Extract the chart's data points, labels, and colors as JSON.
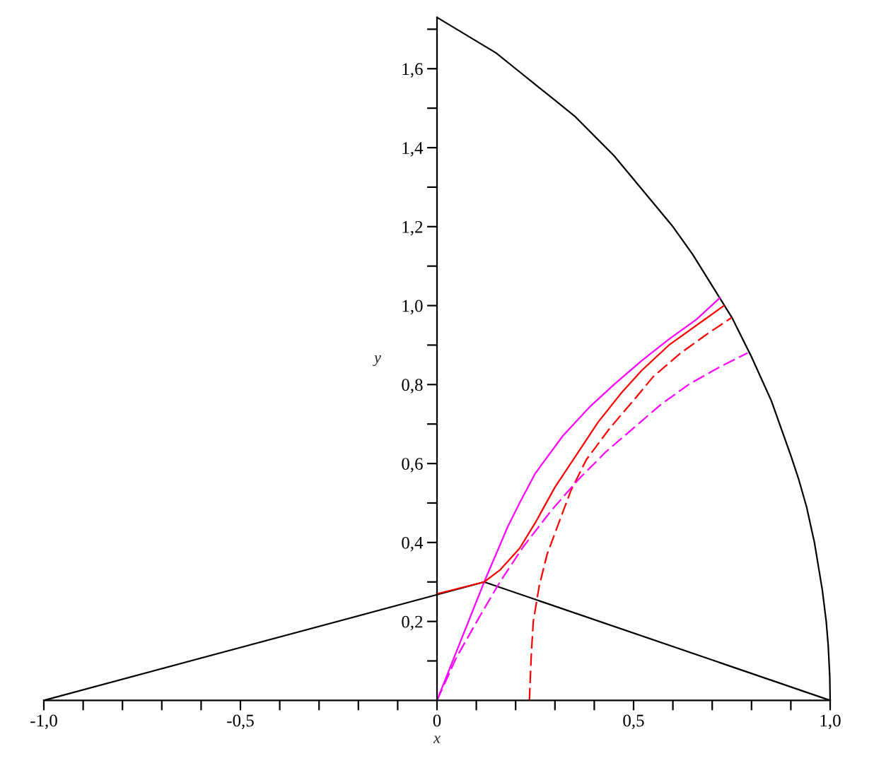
{
  "chart_data": {
    "type": "line",
    "xlabel": "x",
    "ylabel": "y",
    "xlim": [
      -1,
      1
    ],
    "ylim": [
      0,
      1.73
    ],
    "xticks": [
      {
        "value": -1,
        "label": "-1,0"
      },
      {
        "value": -0.9,
        "label": null
      },
      {
        "value": -0.8,
        "label": null
      },
      {
        "value": -0.7,
        "label": null
      },
      {
        "value": -0.6,
        "label": null
      },
      {
        "value": -0.5,
        "label": "-0,5"
      },
      {
        "value": -0.4,
        "label": null
      },
      {
        "value": -0.3,
        "label": null
      },
      {
        "value": -0.2,
        "label": null
      },
      {
        "value": -0.1,
        "label": null
      },
      0,
      {
        "value": 0.1,
        "label": null
      },
      {
        "value": 0.2,
        "label": null
      },
      {
        "value": 0.3,
        "label": null
      },
      {
        "value": 0.4,
        "label": null
      },
      {
        "value": 0.5,
        "label": "0,5"
      },
      {
        "value": 0.6,
        "label": null
      },
      {
        "value": 0.7,
        "label": null
      },
      {
        "value": 0.8,
        "label": null
      },
      {
        "value": 0.9,
        "label": null
      },
      {
        "value": 1,
        "label": "1,0"
      }
    ],
    "yticks": [
      {
        "value": 0.1,
        "label": null
      },
      {
        "value": 0.2,
        "label": "0,2"
      },
      {
        "value": 0.3,
        "label": null
      },
      {
        "value": 0.4,
        "label": "0,4"
      },
      {
        "value": 0.5,
        "label": null
      },
      {
        "value": 0.6,
        "label": "0,6"
      },
      {
        "value": 0.7,
        "label": null
      },
      {
        "value": 0.8,
        "label": "0,8"
      },
      {
        "value": 0.9,
        "label": null
      },
      {
        "value": 1.0,
        "label": "1,0"
      },
      {
        "value": 1.1,
        "label": null
      },
      {
        "value": 1.2,
        "label": "1,2"
      },
      {
        "value": 1.3,
        "label": null
      },
      {
        "value": 1.4,
        "label": "1,4"
      },
      {
        "value": 1.5,
        "label": null
      },
      {
        "value": 1.6,
        "label": "1,6"
      },
      {
        "value": 1.7,
        "label": null
      }
    ],
    "series": [
      {
        "color": "#000000",
        "line_style": "solid",
        "x": [
          -1,
          0.12,
          1,
          0.999,
          0.995,
          0.99,
          0.98,
          0.96,
          0.94,
          0.92,
          0.9,
          0.85,
          0.8,
          0.75,
          0.7,
          0.65,
          0.6,
          0.55,
          0.5,
          0.45,
          0.4,
          0.35,
          0.3,
          0.25,
          0.2,
          0.15,
          0.1,
          0.05,
          0
        ],
        "values": [
          0,
          0.3,
          0,
          0.06,
          0.14,
          0.2,
          0.28,
          0.4,
          0.49,
          0.56,
          0.62,
          0.76,
          0.87,
          0.97,
          1.05,
          1.13,
          1.2,
          1.26,
          1.32,
          1.38,
          1.43,
          1.48,
          1.52,
          1.56,
          1.6,
          1.64,
          1.67,
          1.7,
          1.73
        ]
      },
      {
        "color": "#ff00ff",
        "line_style": "solid",
        "x": [
          0,
          0.12,
          0.18,
          0.21,
          0.25,
          0.32,
          0.39,
          0.45,
          0.52,
          0.59,
          0.66,
          0.72
        ],
        "values": [
          0,
          0.3,
          0.44,
          0.5,
          0.575,
          0.67,
          0.745,
          0.8,
          0.86,
          0.915,
          0.965,
          1.02
        ]
      },
      {
        "color": "#ff0000",
        "line_style": "solid",
        "x": [
          0,
          0.12,
          0.16,
          0.21,
          0.25,
          0.3,
          0.36,
          0.41,
          0.47,
          0.52,
          0.59,
          0.66,
          0.73
        ],
        "values": [
          0.27,
          0.3,
          0.33,
          0.385,
          0.45,
          0.54,
          0.63,
          0.705,
          0.78,
          0.835,
          0.9,
          0.95,
          1.0
        ]
      },
      {
        "color": "#ff0000",
        "line_style": "dashed",
        "x": [
          0.235,
          0.24,
          0.245,
          0.26,
          0.28,
          0.31,
          0.34,
          0.38,
          0.44,
          0.5,
          0.55,
          0.62,
          0.69,
          0.75
        ],
        "values": [
          0,
          0.12,
          0.2,
          0.29,
          0.37,
          0.45,
          0.53,
          0.61,
          0.69,
          0.76,
          0.82,
          0.88,
          0.93,
          0.97
        ]
      },
      {
        "color": "#ff00ff",
        "line_style": "dashed",
        "x": [
          0,
          0.05,
          0.11,
          0.16,
          0.22,
          0.29,
          0.36,
          0.43,
          0.5,
          0.57,
          0.64,
          0.72,
          0.79
        ],
        "values": [
          0,
          0.11,
          0.215,
          0.3,
          0.39,
          0.48,
          0.56,
          0.63,
          0.69,
          0.75,
          0.8,
          0.845,
          0.88
        ]
      }
    ]
  }
}
